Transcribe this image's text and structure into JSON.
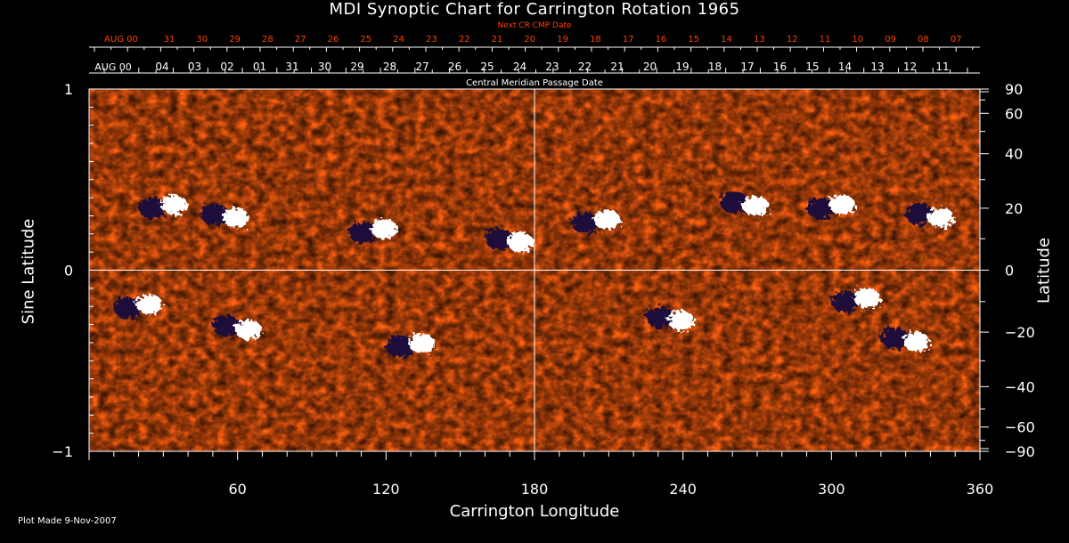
{
  "chart_data": {
    "type": "heatmap",
    "title": "MDI Synoptic Chart for Carrington Rotation 1965",
    "xlabel": "Carrington Longitude",
    "ylabel_left": "Sine Latitude",
    "ylabel_right": "Latitude",
    "xlim": [
      0,
      360
    ],
    "ylim": [
      -1,
      1
    ],
    "x_tick_labels": [
      "60",
      "120",
      "180",
      "240",
      "300",
      "360"
    ],
    "x_tick_values": [
      60,
      120,
      180,
      240,
      300,
      360
    ],
    "y_left_tick_labels": [
      "1",
      "0",
      "−1"
    ],
    "y_left_tick_values": [
      1,
      0,
      -1
    ],
    "y_right_tick_labels": [
      "90",
      "60",
      "40",
      "20",
      "0",
      "−20",
      "−40",
      "−60",
      "−90"
    ],
    "y_right_tick_values": [
      90,
      60,
      40,
      20,
      0,
      -20,
      -40,
      -60,
      -90
    ],
    "grid_lines": {
      "vertical_at_longitude": 180,
      "horizontal_at_sine_latitude": 0
    },
    "top_axis": {
      "label": "Central Meridian Passage Date",
      "dates": [
        "AUG 00",
        "04",
        "03",
        "02",
        "01",
        "31",
        "30",
        "29",
        "28",
        "27",
        "26",
        "25",
        "24",
        "23",
        "22",
        "21",
        "20",
        "19",
        "18",
        "17",
        "16",
        "15",
        "14",
        "13",
        "12",
        "11"
      ]
    },
    "next_cr_axis": {
      "label": "Next CR CMP Date",
      "dates": [
        "AUG 00",
        "31",
        "30",
        "29",
        "28",
        "27",
        "26",
        "25",
        "24",
        "23",
        "22",
        "21",
        "20",
        "19",
        "18",
        "17",
        "16",
        "15",
        "14",
        "13",
        "12",
        "11",
        "10",
        "09",
        "08",
        "07"
      ]
    },
    "active_regions": [
      {
        "longitude": 30,
        "latitude": 20,
        "polarity": "mixed"
      },
      {
        "longitude": 55,
        "latitude": 18,
        "polarity": "mixed"
      },
      {
        "longitude": 115,
        "latitude": 12,
        "polarity": "mixed"
      },
      {
        "longitude": 170,
        "latitude": 10,
        "polarity": "mixed"
      },
      {
        "longitude": 205,
        "latitude": 15,
        "polarity": "mixed"
      },
      {
        "longitude": 265,
        "latitude": 22,
        "polarity": "mixed"
      },
      {
        "longitude": 300,
        "latitude": 20,
        "polarity": "mixed"
      },
      {
        "longitude": 340,
        "latitude": 18,
        "polarity": "mixed"
      },
      {
        "longitude": 20,
        "latitude": -12,
        "polarity": "mixed"
      },
      {
        "longitude": 60,
        "latitude": -18,
        "polarity": "mixed"
      },
      {
        "longitude": 130,
        "latitude": -25,
        "polarity": "mixed"
      },
      {
        "longitude": 235,
        "latitude": -15,
        "polarity": "mixed"
      },
      {
        "longitude": 310,
        "latitude": -10,
        "polarity": "mixed"
      },
      {
        "longitude": 330,
        "latitude": -22,
        "polarity": "mixed"
      }
    ],
    "colors": {
      "background": "#000000",
      "field_low": "#c02000",
      "field_mid": "#ff6010",
      "positive_polarity": "#ffffff",
      "negative_polarity": "#1a0f3a",
      "axis": "#ffffff",
      "next_cr_text": "#ff4000"
    }
  },
  "footer": {
    "plot_made": "Plot Made  9-Nov-2007"
  }
}
